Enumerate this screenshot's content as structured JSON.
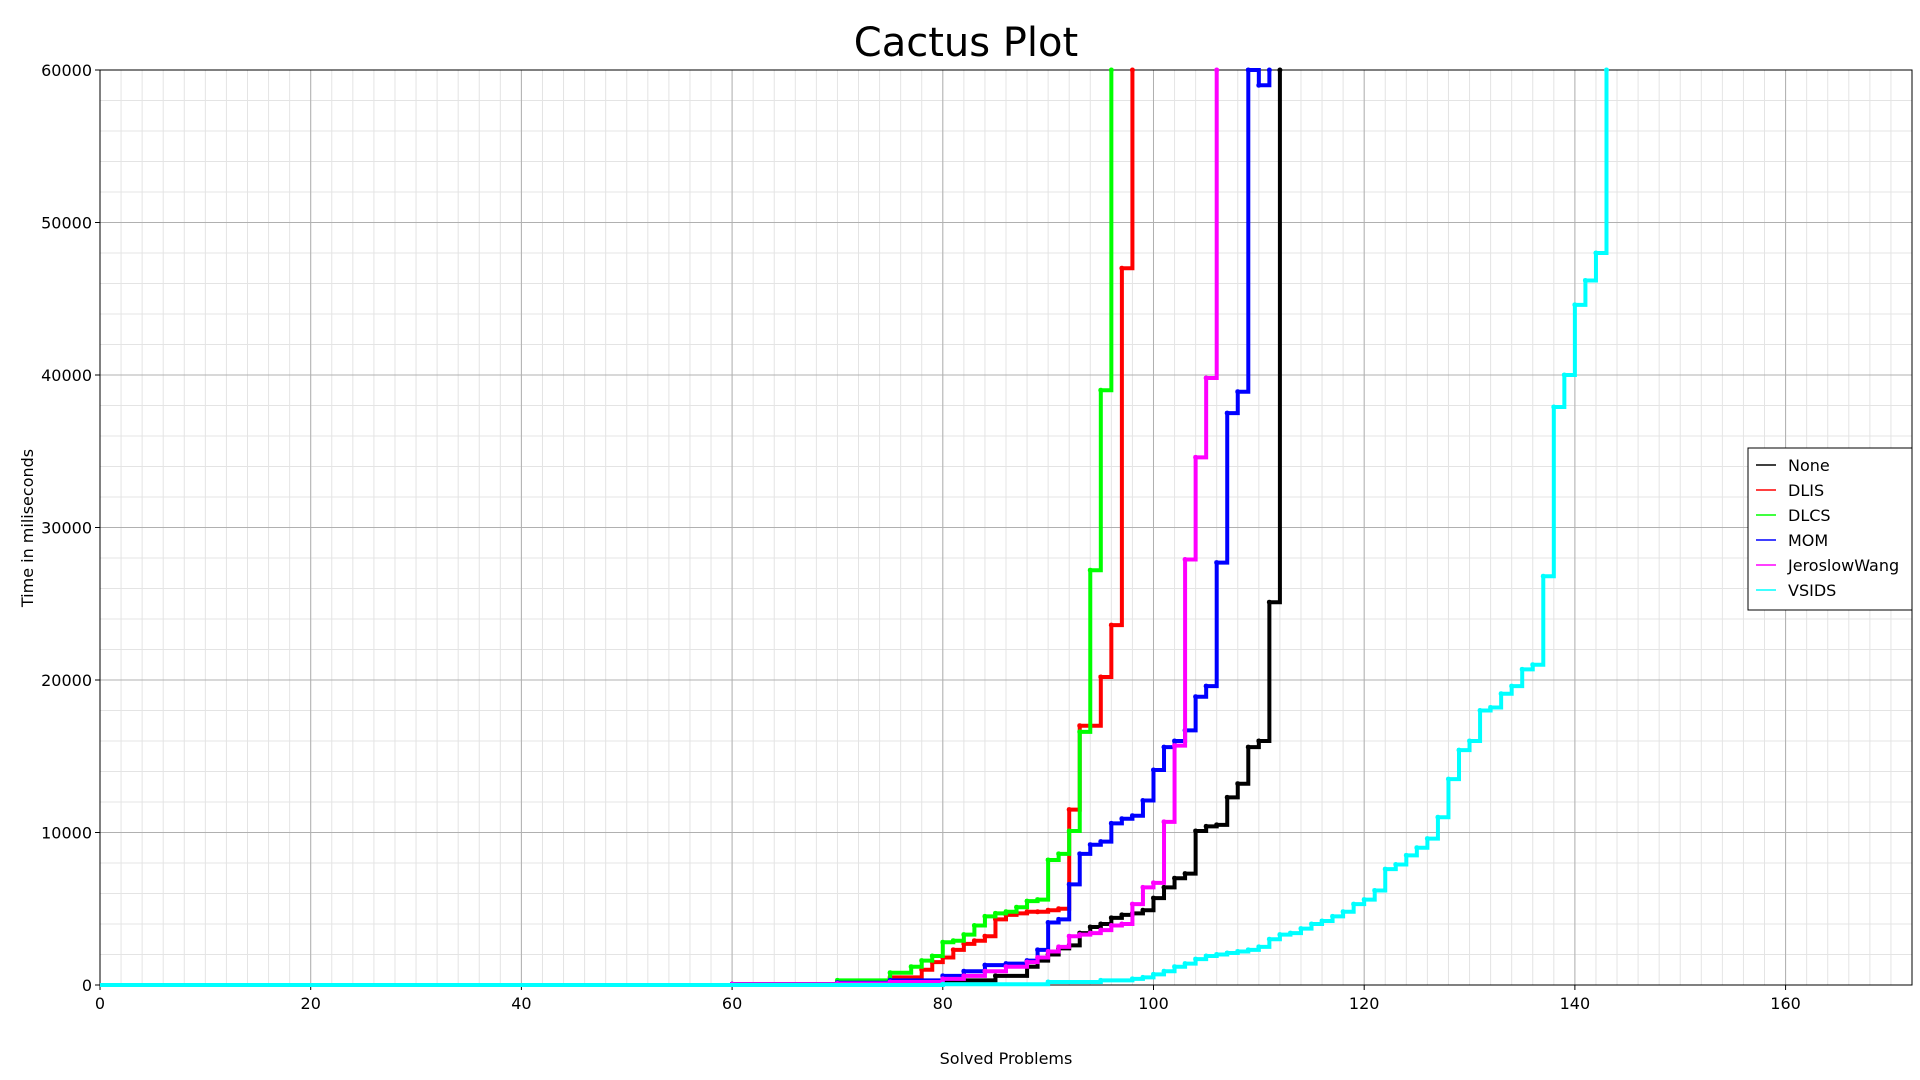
{
  "chart_data": {
    "type": "line",
    "title": "Cactus Plot",
    "xlabel": "Solved Problems",
    "ylabel": "Time in miliseconds",
    "xlim": [
      0,
      172
    ],
    "ylim": [
      0,
      60000
    ],
    "x_ticks": [
      0,
      20,
      40,
      60,
      80,
      100,
      120,
      140,
      160
    ],
    "y_ticks": [
      0,
      10000,
      20000,
      30000,
      40000,
      50000,
      60000
    ],
    "grid": true,
    "legend_position": "right",
    "series": [
      {
        "name": "None",
        "color": "#000000",
        "points": [
          [
            60,
            50
          ],
          [
            70,
            120
          ],
          [
            75,
            200
          ],
          [
            80,
            300
          ],
          [
            85,
            600
          ],
          [
            88,
            1200
          ],
          [
            89,
            1600
          ],
          [
            90,
            2000
          ],
          [
            91,
            2400
          ],
          [
            92,
            2600
          ],
          [
            93,
            3400
          ],
          [
            94,
            3800
          ],
          [
            95,
            4000
          ],
          [
            96,
            4400
          ],
          [
            97,
            4600
          ],
          [
            98,
            4700
          ],
          [
            99,
            4900
          ],
          [
            100,
            5700
          ],
          [
            101,
            6400
          ],
          [
            102,
            7000
          ],
          [
            103,
            7300
          ],
          [
            104,
            10100
          ],
          [
            105,
            10400
          ],
          [
            106,
            10500
          ],
          [
            107,
            12300
          ],
          [
            108,
            13200
          ],
          [
            109,
            15600
          ],
          [
            110,
            16000
          ],
          [
            111,
            25100
          ],
          [
            112,
            60000
          ]
        ]
      },
      {
        "name": "DLIS",
        "color": "#ff0000",
        "points": [
          [
            60,
            50
          ],
          [
            70,
            200
          ],
          [
            75,
            500
          ],
          [
            78,
            1000
          ],
          [
            79,
            1500
          ],
          [
            80,
            1800
          ],
          [
            81,
            2300
          ],
          [
            82,
            2700
          ],
          [
            83,
            2900
          ],
          [
            84,
            3200
          ],
          [
            85,
            4300
          ],
          [
            86,
            4600
          ],
          [
            87,
            4700
          ],
          [
            88,
            4800
          ],
          [
            89,
            4800
          ],
          [
            90,
            4900
          ],
          [
            91,
            5000
          ],
          [
            92,
            11500
          ],
          [
            93,
            17000
          ],
          [
            94,
            17000
          ],
          [
            95,
            20200
          ],
          [
            96,
            23600
          ],
          [
            97,
            47000
          ],
          [
            98,
            60000
          ]
        ]
      },
      {
        "name": "DLCS",
        "color": "#00ff00",
        "points": [
          [
            60,
            50
          ],
          [
            70,
            300
          ],
          [
            75,
            800
          ],
          [
            77,
            1200
          ],
          [
            78,
            1600
          ],
          [
            79,
            1900
          ],
          [
            80,
            2800
          ],
          [
            81,
            2900
          ],
          [
            82,
            3300
          ],
          [
            83,
            3900
          ],
          [
            84,
            4500
          ],
          [
            85,
            4700
          ],
          [
            86,
            4800
          ],
          [
            87,
            5100
          ],
          [
            88,
            5500
          ],
          [
            89,
            5600
          ],
          [
            90,
            8200
          ],
          [
            91,
            8600
          ],
          [
            92,
            10100
          ],
          [
            93,
            16600
          ],
          [
            94,
            27200
          ],
          [
            95,
            39000
          ],
          [
            96,
            60000
          ]
        ]
      },
      {
        "name": "MOM",
        "color": "#0000ff",
        "points": [
          [
            60,
            50
          ],
          [
            70,
            150
          ],
          [
            75,
            300
          ],
          [
            80,
            600
          ],
          [
            82,
            900
          ],
          [
            84,
            1300
          ],
          [
            86,
            1400
          ],
          [
            88,
            1600
          ],
          [
            89,
            2300
          ],
          [
            90,
            4100
          ],
          [
            91,
            4300
          ],
          [
            92,
            6600
          ],
          [
            93,
            8600
          ],
          [
            94,
            9200
          ],
          [
            95,
            9400
          ],
          [
            96,
            10600
          ],
          [
            97,
            10900
          ],
          [
            98,
            11100
          ],
          [
            99,
            12100
          ],
          [
            100,
            14100
          ],
          [
            101,
            15600
          ],
          [
            102,
            16000
          ],
          [
            103,
            16700
          ],
          [
            104,
            18900
          ],
          [
            105,
            19600
          ],
          [
            106,
            27700
          ],
          [
            107,
            37500
          ],
          [
            108,
            38900
          ],
          [
            109,
            60000
          ],
          [
            110,
            59000
          ],
          [
            111,
            60000
          ]
        ]
      },
      {
        "name": "JeroslowWang",
        "color": "#ff00ff",
        "points": [
          [
            60,
            50
          ],
          [
            70,
            100
          ],
          [
            75,
            200
          ],
          [
            80,
            400
          ],
          [
            82,
            600
          ],
          [
            84,
            900
          ],
          [
            86,
            1200
          ],
          [
            88,
            1500
          ],
          [
            89,
            1800
          ],
          [
            90,
            2200
          ],
          [
            91,
            2500
          ],
          [
            92,
            3200
          ],
          [
            93,
            3300
          ],
          [
            94,
            3400
          ],
          [
            95,
            3600
          ],
          [
            96,
            3900
          ],
          [
            97,
            4000
          ],
          [
            98,
            5300
          ],
          [
            99,
            6400
          ],
          [
            100,
            6700
          ],
          [
            101,
            10700
          ],
          [
            102,
            15700
          ],
          [
            103,
            27900
          ],
          [
            104,
            34600
          ],
          [
            105,
            39800
          ],
          [
            106,
            60000
          ]
        ]
      },
      {
        "name": "VSIDS",
        "color": "#00ffff",
        "points": [
          [
            80,
            50
          ],
          [
            90,
            200
          ],
          [
            95,
            300
          ],
          [
            98,
            400
          ],
          [
            99,
            500
          ],
          [
            100,
            700
          ],
          [
            101,
            900
          ],
          [
            102,
            1200
          ],
          [
            103,
            1400
          ],
          [
            104,
            1700
          ],
          [
            105,
            1900
          ],
          [
            106,
            2000
          ],
          [
            107,
            2100
          ],
          [
            108,
            2200
          ],
          [
            109,
            2300
          ],
          [
            110,
            2500
          ],
          [
            111,
            3000
          ],
          [
            112,
            3300
          ],
          [
            113,
            3400
          ],
          [
            114,
            3700
          ],
          [
            115,
            4000
          ],
          [
            116,
            4200
          ],
          [
            117,
            4500
          ],
          [
            118,
            4800
          ],
          [
            119,
            5300
          ],
          [
            120,
            5600
          ],
          [
            121,
            6200
          ],
          [
            122,
            7600
          ],
          [
            123,
            7900
          ],
          [
            124,
            8500
          ],
          [
            125,
            9000
          ],
          [
            126,
            9600
          ],
          [
            127,
            11000
          ],
          [
            128,
            13500
          ],
          [
            129,
            15400
          ],
          [
            130,
            16000
          ],
          [
            131,
            18000
          ],
          [
            132,
            18200
          ],
          [
            133,
            19100
          ],
          [
            134,
            19600
          ],
          [
            135,
            20700
          ],
          [
            136,
            21000
          ],
          [
            137,
            26800
          ],
          [
            138,
            37900
          ],
          [
            139,
            40000
          ],
          [
            140,
            44600
          ],
          [
            141,
            46200
          ],
          [
            142,
            48000
          ],
          [
            143,
            60000
          ]
        ]
      }
    ]
  }
}
